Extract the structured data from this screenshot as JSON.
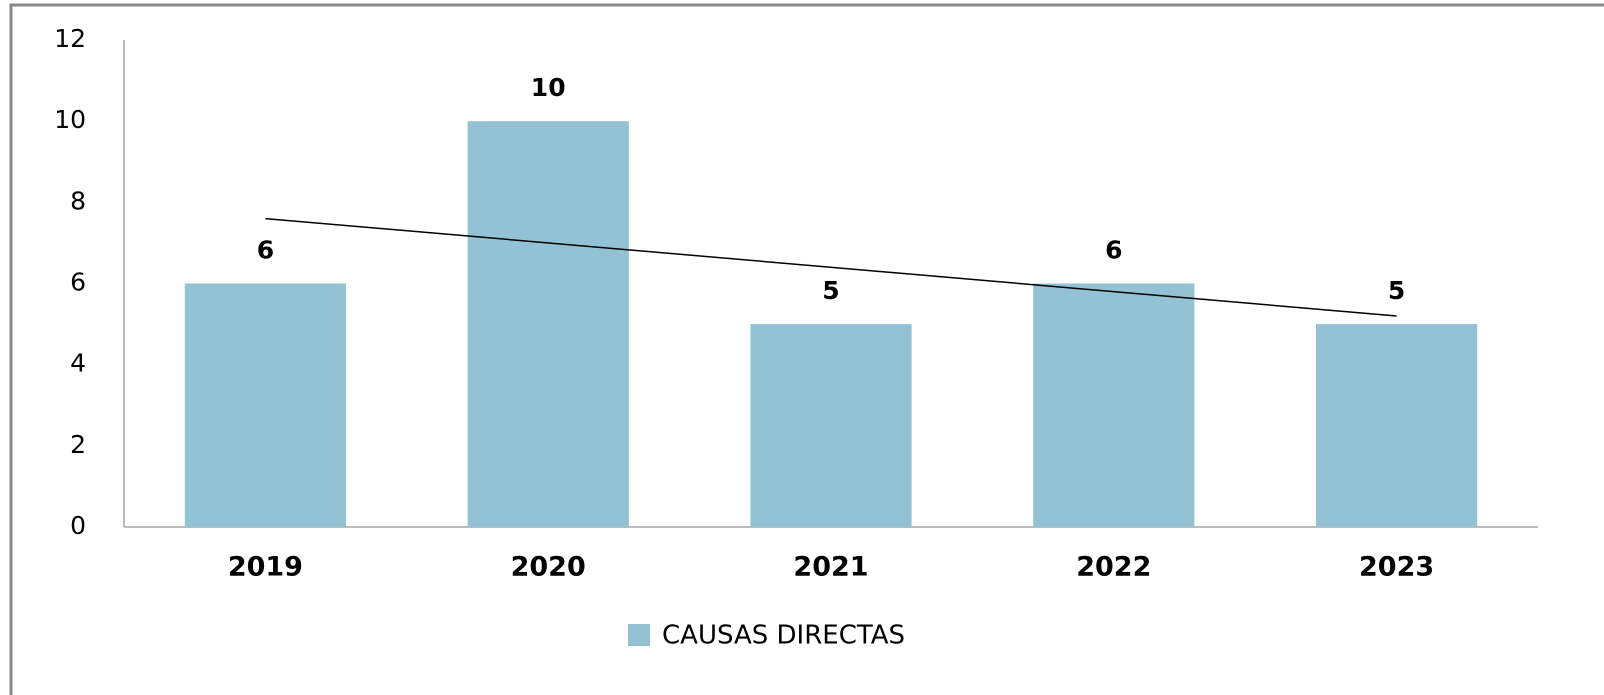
{
  "chart_data": {
    "type": "bar",
    "categories": [
      "2019",
      "2020",
      "2021",
      "2022",
      "2023"
    ],
    "series": [
      {
        "name": "CAUSAS DIRECTAS",
        "color": "#93c2d4",
        "values": [
          6,
          10,
          5,
          6,
          5
        ]
      }
    ],
    "trendline": {
      "color": "#000000",
      "values": [
        7.6,
        5.2
      ]
    },
    "ylim": [
      0,
      12
    ],
    "yticks": [
      0,
      2,
      4,
      6,
      8,
      10,
      12
    ],
    "grid": false,
    "legend": "bottom"
  }
}
